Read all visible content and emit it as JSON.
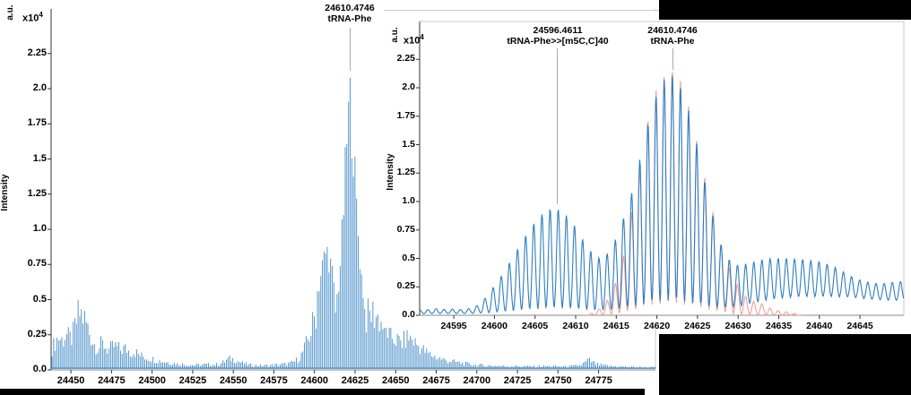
{
  "colors": {
    "trace_blue": "#2E7EC1",
    "trace_pink": "#F2A09B",
    "axis_dark": "#333333",
    "axis_mid": "#8a8a8a",
    "axis_light": "#c9c9c9",
    "leader_gray": "#a9a9a9",
    "redaction_black": "#000000"
  },
  "chart_data": [
    {
      "type": "line",
      "subtype": "mass-spectrum",
      "title": "",
      "xlabel": "",
      "ylabel": "Intensity",
      "y_unit": "a.u.",
      "y_multiplier": "x10",
      "y_exponent": "4",
      "xlim": [
        24437.8,
        24810
      ],
      "ylim": [
        0,
        2.55
      ],
      "grid": false,
      "legend": false,
      "x_ticks": [
        24450,
        24475,
        24500,
        24525,
        24550,
        24575,
        24600,
        24625,
        24650,
        24675,
        24700,
        24725,
        24750,
        24775
      ],
      "y_ticks": [
        "0.0",
        "0.25",
        "0.5",
        "0.75",
        "1.0",
        "1.25",
        "1.5",
        "1.75",
        "2.0",
        "2.25"
      ],
      "isotope_spacing": 1.003,
      "annotations": [
        {
          "mass_label": "24610.4746",
          "name": "tRNA-Phe",
          "line_x": 24621.8,
          "line_top_value": 2.13
        }
      ],
      "series": [
        {
          "id": "deconvoluted-spectrum",
          "color": "#2E7EC1",
          "envelope": [
            [
              24438,
              0.18
            ],
            [
              24440,
              0.24
            ],
            [
              24442,
              0.3
            ],
            [
              24445,
              0.27
            ],
            [
              24447,
              0.33
            ],
            [
              24449,
              0.28
            ],
            [
              24451,
              0.3
            ],
            [
              24453,
              0.42
            ],
            [
              24455,
              0.52
            ],
            [
              24457,
              0.5
            ],
            [
              24459,
              0.44
            ],
            [
              24461,
              0.36
            ],
            [
              24463,
              0.28
            ],
            [
              24465,
              0.22
            ],
            [
              24467,
              0.2
            ],
            [
              24469,
              0.24
            ],
            [
              24471,
              0.22
            ],
            [
              24473,
              0.18
            ],
            [
              24475,
              0.2
            ],
            [
              24477,
              0.22
            ],
            [
              24479,
              0.2
            ],
            [
              24481,
              0.18
            ],
            [
              24483,
              0.2
            ],
            [
              24485,
              0.18
            ],
            [
              24487,
              0.16
            ],
            [
              24489,
              0.17
            ],
            [
              24491,
              0.15
            ],
            [
              24493,
              0.13
            ],
            [
              24495,
              0.12
            ],
            [
              24497,
              0.11
            ],
            [
              24500,
              0.1
            ],
            [
              24504,
              0.085
            ],
            [
              24508,
              0.075
            ],
            [
              24512,
              0.065
            ],
            [
              24516,
              0.055
            ],
            [
              24520,
              0.05
            ],
            [
              24525,
              0.045
            ],
            [
              24530,
              0.045
            ],
            [
              24535,
              0.05
            ],
            [
              24540,
              0.05
            ],
            [
              24544,
              0.07
            ],
            [
              24547,
              0.1
            ],
            [
              24550,
              0.1
            ],
            [
              24553,
              0.08
            ],
            [
              24556,
              0.06
            ],
            [
              24560,
              0.045
            ],
            [
              24565,
              0.04
            ],
            [
              24570,
              0.04
            ],
            [
              24575,
              0.045
            ],
            [
              24580,
              0.05
            ],
            [
              24584,
              0.055
            ],
            [
              24587,
              0.07
            ],
            [
              24590,
              0.1
            ],
            [
              24592,
              0.14
            ],
            [
              24594,
              0.2
            ],
            [
              24596,
              0.28
            ],
            [
              24598,
              0.36
            ],
            [
              24600,
              0.48
            ],
            [
              24602,
              0.62
            ],
            [
              24604,
              0.75
            ],
            [
              24606,
              0.87
            ],
            [
              24607.5,
              0.93
            ],
            [
              24609,
              0.88
            ],
            [
              24610.5,
              0.78
            ],
            [
              24612,
              0.62
            ],
            [
              24613,
              0.52
            ],
            [
              24614.5,
              0.6
            ],
            [
              24616,
              0.85
            ],
            [
              24617.5,
              1.15
            ],
            [
              24619,
              1.55
            ],
            [
              24620.5,
              1.92
            ],
            [
              24621.8,
              2.1
            ],
            [
              24623,
              1.92
            ],
            [
              24624.5,
              1.6
            ],
            [
              24626,
              1.25
            ],
            [
              24627.5,
              0.95
            ],
            [
              24629,
              0.72
            ],
            [
              24630.5,
              0.56
            ],
            [
              24632,
              0.48
            ],
            [
              24634,
              0.5
            ],
            [
              24636,
              0.52
            ],
            [
              24638,
              0.5
            ],
            [
              24640,
              0.46
            ],
            [
              24642,
              0.41
            ],
            [
              24644,
              0.37
            ],
            [
              24646,
              0.33
            ],
            [
              24648,
              0.3
            ],
            [
              24650,
              0.28
            ],
            [
              24652,
              0.26
            ],
            [
              24654,
              0.25
            ],
            [
              24656,
              0.28
            ],
            [
              24658,
              0.3
            ],
            [
              24660,
              0.28
            ],
            [
              24662,
              0.25
            ],
            [
              24664,
              0.22
            ],
            [
              24666,
              0.2
            ],
            [
              24668,
              0.17
            ],
            [
              24670,
              0.15
            ],
            [
              24673,
              0.13
            ],
            [
              24676,
              0.11
            ],
            [
              24680,
              0.09
            ],
            [
              24684,
              0.08
            ],
            [
              24688,
              0.07
            ],
            [
              24692,
              0.06
            ],
            [
              24696,
              0.05
            ],
            [
              24700,
              0.045
            ],
            [
              24706,
              0.04
            ],
            [
              24712,
              0.038
            ],
            [
              24718,
              0.035
            ],
            [
              24724,
              0.035
            ],
            [
              24730,
              0.032
            ],
            [
              24736,
              0.032
            ],
            [
              24742,
              0.035
            ],
            [
              24748,
              0.032
            ],
            [
              24754,
              0.03
            ],
            [
              24760,
              0.035
            ],
            [
              24764,
              0.045
            ],
            [
              24767,
              0.07
            ],
            [
              24769,
              0.09
            ],
            [
              24771,
              0.07
            ],
            [
              24774,
              0.05
            ],
            [
              24778,
              0.04
            ],
            [
              24783,
              0.033
            ],
            [
              24790,
              0.03
            ],
            [
              24800,
              0.026
            ],
            [
              24810,
              0.022
            ]
          ]
        }
      ]
    },
    {
      "type": "line",
      "subtype": "mass-spectrum-inset-isotope-resolved",
      "title": "",
      "xlabel": "",
      "ylabel": "Intensity",
      "y_unit": "a.u.",
      "y_multiplier": "x10",
      "y_exponent": "4",
      "xlim": [
        24590.8,
        24650.4
      ],
      "ylim": [
        0,
        2.6
      ],
      "grid": false,
      "legend": false,
      "x_ticks": [
        24595,
        24600,
        24605,
        24610,
        24615,
        24620,
        24625,
        24630,
        24635,
        24640,
        24645
      ],
      "y_ticks": [
        "0.0",
        "0.25",
        "0.5",
        "0.75",
        "1.0",
        "1.25",
        "1.5",
        "1.75",
        "2.0",
        "2.25"
      ],
      "isotope_spacing": 1.003,
      "isotope_phase_origin": 24590.81,
      "annotations": [
        {
          "mass_label": "24596.4611",
          "name": "tRNA-Phe>>[m5C,C]40",
          "line_x": 24607.7,
          "line_top_value": 0.98
        },
        {
          "mass_label": "24610.4746",
          "name": "tRNA-Phe",
          "line_x": 24621.9,
          "line_top_value": 2.16
        }
      ],
      "series": [
        {
          "id": "measured-trace",
          "color": "#2E7EC1",
          "peak_envelope": [
            [
              24590.8,
              0.05
            ],
            [
              24592,
              0.05
            ],
            [
              24593,
              0.06
            ],
            [
              24594,
              0.05
            ],
            [
              24595,
              0.055
            ],
            [
              24596,
              0.05
            ],
            [
              24597,
              0.06
            ],
            [
              24598,
              0.09
            ],
            [
              24599,
              0.16
            ],
            [
              24600,
              0.26
            ],
            [
              24601,
              0.36
            ],
            [
              24602,
              0.48
            ],
            [
              24603,
              0.6
            ],
            [
              24604,
              0.72
            ],
            [
              24605,
              0.82
            ],
            [
              24606,
              0.9
            ],
            [
              24607,
              0.94
            ],
            [
              24608,
              0.93
            ],
            [
              24609,
              0.87
            ],
            [
              24610,
              0.78
            ],
            [
              24611,
              0.65
            ],
            [
              24612,
              0.55
            ],
            [
              24613,
              0.5
            ],
            [
              24614,
              0.55
            ],
            [
              24615,
              0.68
            ],
            [
              24616,
              0.88
            ],
            [
              24617,
              1.1
            ],
            [
              24618,
              1.4
            ],
            [
              24619,
              1.72
            ],
            [
              24620,
              1.95
            ],
            [
              24621,
              2.08
            ],
            [
              24622,
              2.12
            ],
            [
              24623,
              2.0
            ],
            [
              24624,
              1.78
            ],
            [
              24625,
              1.48
            ],
            [
              24626,
              1.15
            ],
            [
              24627,
              0.85
            ],
            [
              24628,
              0.6
            ],
            [
              24629,
              0.48
            ],
            [
              24630,
              0.44
            ],
            [
              24631,
              0.45
            ],
            [
              24632,
              0.47
            ],
            [
              24633,
              0.49
            ],
            [
              24634,
              0.5
            ],
            [
              24636,
              0.5
            ],
            [
              24638,
              0.49
            ],
            [
              24640,
              0.47
            ],
            [
              24641,
              0.45
            ],
            [
              24642,
              0.42
            ],
            [
              24643,
              0.38
            ],
            [
              24644,
              0.34
            ],
            [
              24645,
              0.31
            ],
            [
              24646,
              0.29
            ],
            [
              24647,
              0.28
            ],
            [
              24648,
              0.28
            ],
            [
              24649,
              0.29
            ],
            [
              24650.4,
              0.3
            ]
          ],
          "valley_envelope": [
            [
              24590.8,
              0.012
            ],
            [
              24600,
              0.015
            ],
            [
              24613,
              0.02
            ],
            [
              24627,
              0.03
            ],
            [
              24630,
              0.06
            ],
            [
              24633,
              0.11
            ],
            [
              24636,
              0.14
            ],
            [
              24640,
              0.15
            ],
            [
              24644,
              0.15
            ],
            [
              24647,
              0.13
            ],
            [
              24650.4,
              0.12
            ]
          ]
        },
        {
          "id": "fit-trace",
          "color": "#F2A09B",
          "peak_envelope": [
            [
              24611.5,
              0
            ],
            [
              24613,
              0.06
            ],
            [
              24614,
              0.14
            ],
            [
              24615,
              0.3
            ],
            [
              24616,
              0.55
            ],
            [
              24617,
              0.95
            ],
            [
              24618,
              1.35
            ],
            [
              24619,
              1.75
            ],
            [
              24620,
              2.0
            ],
            [
              24621,
              2.12
            ],
            [
              24622,
              2.16
            ],
            [
              24623,
              2.05
            ],
            [
              24624,
              1.82
            ],
            [
              24625,
              1.52
            ],
            [
              24626,
              1.18
            ],
            [
              24627,
              0.88
            ],
            [
              24628,
              0.6
            ],
            [
              24629,
              0.4
            ],
            [
              24630,
              0.26
            ],
            [
              24631,
              0.16
            ],
            [
              24632,
              0.12
            ],
            [
              24633,
              0.1
            ],
            [
              24634,
              0.06
            ],
            [
              24635,
              0.04
            ],
            [
              24636,
              0.03
            ],
            [
              24637,
              0.015
            ],
            [
              24638,
              0
            ]
          ],
          "valley_envelope": [
            [
              24590.8,
              0
            ],
            [
              24650.4,
              0
            ]
          ]
        }
      ]
    }
  ]
}
